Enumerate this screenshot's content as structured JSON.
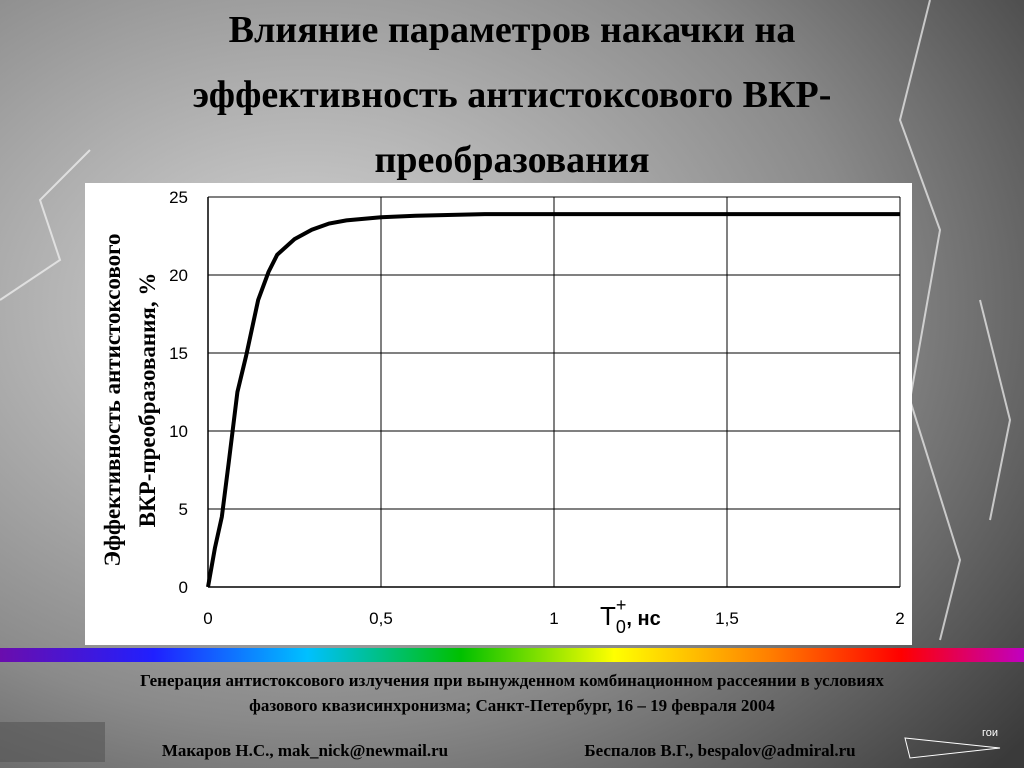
{
  "slide": {
    "title_lines": [
      "Влияние параметров накачки на",
      "эффективность антистоксового ВКР-",
      "преобразования"
    ],
    "conference_lines": [
      "Генерация антистоксового излучения при вынужденном комбинационном рассеянии в условиях",
      "фазового квазисинхронизма; Санкт-Петербург, 16 – 19 февраля  2004"
    ],
    "authors": [
      "Макаров Н.С., mak_nick@newmail.ru",
      "Беспалов В.Г., bespalov@admiral.ru"
    ],
    "logo": "гои"
  },
  "chart_data": {
    "type": "line",
    "y_label_lines": [
      "Эффективность антистоксового",
      "ВКР-преобразования, %"
    ],
    "x_label": {
      "base": "T",
      "sub": "0",
      "sup": "+",
      "rest": ", нс"
    },
    "x": [
      0,
      0.02,
      0.04,
      0.06,
      0.085,
      0.11,
      0.145,
      0.175,
      0.2,
      0.25,
      0.3,
      0.35,
      0.4,
      0.5,
      0.6,
      0.8,
      1,
      1.5,
      2
    ],
    "values": [
      0,
      2.5,
      4.5,
      8,
      12.5,
      14.8,
      18.4,
      20.2,
      21.3,
      22.3,
      22.9,
      23.3,
      23.5,
      23.7,
      23.8,
      23.9,
      23.9,
      23.9,
      23.9
    ],
    "color": "#000000",
    "xlim": [
      0,
      2
    ],
    "xticks": [
      0,
      {
        "value": 0.5,
        "label": "0,5"
      },
      1,
      {
        "value": 1.5,
        "label": "1,5"
      },
      2
    ],
    "ylim": [
      0,
      25
    ],
    "yticks": [
      0,
      5,
      10,
      15,
      20,
      25
    ],
    "grid": true
  }
}
